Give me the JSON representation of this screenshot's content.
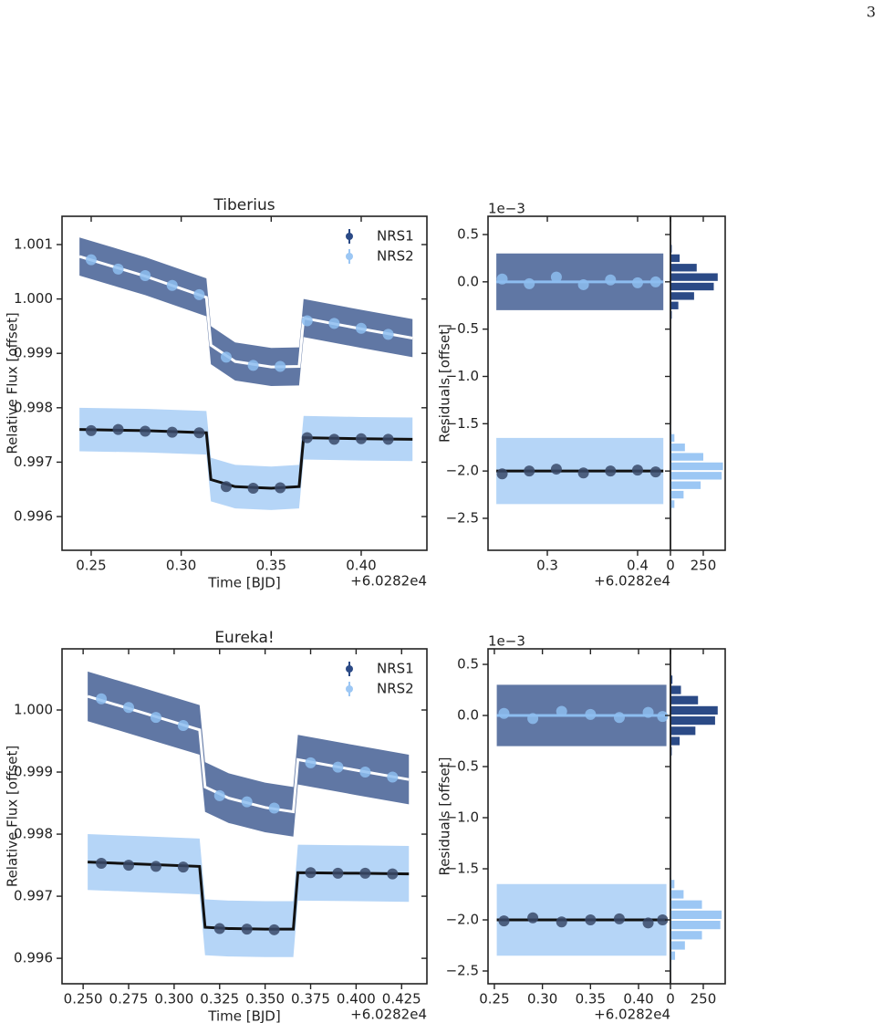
{
  "page_number": "3",
  "chart_data": [
    {
      "type": "line",
      "title": "Tiberius",
      "xlabel": "Time [BJD]",
      "ylabel": "Relative Flux [offset]",
      "x_offset_label": "+6.0282e4",
      "xlim": [
        0.2338,
        0.4365
      ],
      "ylim": [
        0.99538,
        1.00152
      ],
      "xticks": [
        0.25,
        {
          "value": 0.3,
          "label": "0.30"
        },
        0.35,
        {
          "value": 0.4,
          "label": "0.40"
        }
      ],
      "yticks": [
        0.996,
        0.997,
        0.998,
        0.999,
        {
          "value": 1,
          "label": "1.000"
        },
        1.001
      ],
      "legend": "upper right",
      "series": [
        {
          "name": "NRS1",
          "color": "#2b4a86",
          "model_color": "#ffffff",
          "bin_color": "#8dbdf0",
          "x": [
            0.2435,
            0.28,
            0.314,
            0.3165,
            0.33,
            0.35,
            0.3655,
            0.368,
            0.4,
            0.4285
          ],
          "values": [
            1.00078,
            1.00042,
            1.00003,
            0.99915,
            0.99885,
            0.99875,
            0.99876,
            0.99965,
            0.99945,
            0.99928
          ],
          "high": [
            1.00113,
            1.00077,
            1.00038,
            0.9995,
            0.9992,
            0.9991,
            0.99911,
            1.0,
            0.9998,
            0.99963
          ],
          "low": [
            1.00043,
            1.00007,
            0.99968,
            0.9988,
            0.9985,
            0.9984,
            0.99841,
            0.9993,
            0.9991,
            0.99893
          ],
          "bin_x": [
            0.25,
            0.265,
            0.28,
            0.295,
            0.31,
            0.325,
            0.34,
            0.355,
            0.37,
            0.385,
            0.4,
            0.415
          ],
          "bin_values": [
            1.00072,
            1.00055,
            1.00043,
            1.00025,
            1.00008,
            0.99893,
            0.99878,
            0.99876,
            0.9996,
            0.99955,
            0.99946,
            0.99935
          ]
        },
        {
          "name": "NRS2",
          "color": "#9cc7f4",
          "model_color": "#111111",
          "bin_color": "#3a4a6a",
          "x": [
            0.2435,
            0.28,
            0.314,
            0.3165,
            0.33,
            0.35,
            0.3655,
            0.368,
            0.4,
            0.4285
          ],
          "values": [
            0.9976,
            0.99758,
            0.99754,
            0.99668,
            0.99655,
            0.99652,
            0.99655,
            0.99745,
            0.99743,
            0.99742
          ],
          "high": [
            0.998,
            0.99798,
            0.99794,
            0.99708,
            0.99695,
            0.99692,
            0.99695,
            0.99785,
            0.99783,
            0.99782
          ],
          "low": [
            0.9972,
            0.99718,
            0.99714,
            0.99628,
            0.99615,
            0.99612,
            0.99615,
            0.99705,
            0.99703,
            0.99702
          ],
          "bin_x": [
            0.25,
            0.265,
            0.28,
            0.295,
            0.31,
            0.325,
            0.34,
            0.355,
            0.37,
            0.385,
            0.4,
            0.415
          ],
          "bin_values": [
            0.99758,
            0.9976,
            0.99757,
            0.99755,
            0.99754,
            0.99655,
            0.99652,
            0.99653,
            0.99745,
            0.99742,
            0.99743,
            0.99742
          ]
        }
      ]
    },
    {
      "type": "scatter",
      "ylabel": "Residuals [offset]",
      "scale_label": "1e−3",
      "x_offset_label": "+6.0282e4",
      "xlim": [
        0.2343,
        0.4364
      ],
      "ylim": [
        -2.838,
        0.693
      ],
      "xticks": [
        0.3,
        0.4
      ],
      "yticks": [
        {
          "value": -2.5,
          "label": "−2.5"
        },
        {
          "value": -2,
          "label": "−2.0"
        },
        {
          "value": -1.5,
          "label": "−1.5"
        },
        {
          "value": -1,
          "label": "−1.0"
        },
        {
          "value": -0.5,
          "label": "−0.5"
        },
        {
          "value": 0,
          "label": "0.0"
        },
        0.5
      ],
      "series": [
        {
          "color": "#2b4a86",
          "model_color": "#8dbdf0",
          "bin_color": "#8dbdf0",
          "x": [
            0.2435,
            0.4285
          ],
          "values": [
            0,
            0
          ],
          "high": [
            0.3,
            0.3
          ],
          "low": [
            -0.3,
            -0.3
          ],
          "bin_x": [
            0.25,
            0.28,
            0.31,
            0.34,
            0.37,
            0.4,
            0.42
          ],
          "bin_values": [
            0.03,
            -0.02,
            0.05,
            -0.03,
            0.02,
            -0.01,
            0
          ]
        },
        {
          "color": "#9cc7f4",
          "model_color": "#111111",
          "bin_color": "#3a4a6a",
          "x": [
            0.2435,
            0.4285
          ],
          "values": [
            -2,
            -2
          ],
          "high": [
            -1.65,
            -1.65
          ],
          "low": [
            -2.35,
            -2.35
          ],
          "bin_x": [
            0.25,
            0.28,
            0.31,
            0.34,
            0.37,
            0.4,
            0.42
          ],
          "bin_values": [
            -2.03,
            -2,
            -1.98,
            -2.02,
            -2,
            -1.99,
            -2.01
          ]
        }
      ]
    },
    {
      "type": "histogram",
      "xlim": [
        0,
        417
      ],
      "ylim": [
        -2.838,
        0.693
      ],
      "xticks": [
        0,
        250
      ],
      "series": [
        {
          "color": "#2b4a86",
          "bins": [
            -0.4,
            -0.3,
            -0.2,
            -0.1,
            0,
            0.1,
            0.2,
            0.3,
            0.4
          ],
          "counts": [
            10,
            60,
            180,
            330,
            360,
            200,
            70,
            10
          ]
        },
        {
          "color": "#9cc7f4",
          "bins": [
            -2.5,
            -2.4,
            -2.3,
            -2.2,
            -2.1,
            -2,
            -1.9,
            -1.8,
            -1.7,
            -1.6,
            -1.5
          ],
          "counts": [
            5,
            30,
            100,
            230,
            390,
            400,
            250,
            110,
            30,
            5
          ]
        }
      ]
    },
    {
      "type": "line",
      "title": "Eureka!",
      "xlabel": "Time [BJD]",
      "ylabel": "Relative Flux [offset]",
      "x_offset_label": "+6.0282e4",
      "xlim": [
        0.2384,
        0.4389
      ],
      "ylim": [
        0.99559,
        1.000985
      ],
      "xticks": [
        {
          "value": 0.25,
          "label": "0.250"
        },
        0.275,
        {
          "value": 0.3,
          "label": "0.300"
        },
        0.325,
        {
          "value": 0.35,
          "label": "0.350"
        },
        0.375,
        {
          "value": 0.4,
          "label": "0.400"
        },
        0.425
      ],
      "yticks": [
        0.996,
        0.997,
        0.998,
        0.999,
        {
          "value": 1,
          "label": "1.000"
        }
      ],
      "legend": "upper right",
      "series": [
        {
          "name": "NRS1",
          "color": "#2b4a86",
          "model_color": "#ffffff",
          "bin_color": "#8dbdf0",
          "x": [
            0.2525,
            0.28,
            0.314,
            0.317,
            0.33,
            0.35,
            0.3655,
            0.368,
            0.4,
            0.429
          ],
          "values": [
            1.00022,
            0.99998,
            0.99968,
            0.99876,
            0.99858,
            0.99843,
            0.99836,
            0.9992,
            0.99903,
            0.99888
          ],
          "high": [
            1.00062,
            1.00038,
            1.00008,
            0.99916,
            0.99898,
            0.99883,
            0.99876,
            0.9996,
            0.99943,
            0.99928
          ],
          "low": [
            0.99982,
            0.99958,
            0.99928,
            0.99836,
            0.99818,
            0.99803,
            0.99796,
            0.9988,
            0.99863,
            0.99848
          ],
          "bin_x": [
            0.26,
            0.275,
            0.29,
            0.305,
            0.325,
            0.34,
            0.355,
            0.375,
            0.39,
            0.405,
            0.42
          ],
          "bin_values": [
            1.00018,
            1.00004,
            0.99988,
            0.99975,
            0.99862,
            0.99852,
            0.99842,
            0.99915,
            0.99908,
            0.999,
            0.99892
          ]
        },
        {
          "name": "NRS2",
          "color": "#9cc7f4",
          "model_color": "#111111",
          "bin_color": "#3a4a6a",
          "x": [
            0.2525,
            0.28,
            0.314,
            0.317,
            0.33,
            0.35,
            0.3655,
            0.368,
            0.4,
            0.429
          ],
          "values": [
            0.99755,
            0.99752,
            0.99748,
            0.9965,
            0.99648,
            0.99647,
            0.99647,
            0.99738,
            0.99737,
            0.99736
          ],
          "high": [
            0.998,
            0.99797,
            0.99793,
            0.99695,
            0.99693,
            0.99692,
            0.99692,
            0.99783,
            0.99782,
            0.99781
          ],
          "low": [
            0.9971,
            0.99707,
            0.99703,
            0.99605,
            0.99603,
            0.99602,
            0.99602,
            0.99693,
            0.99692,
            0.99691
          ],
          "bin_x": [
            0.26,
            0.275,
            0.29,
            0.305,
            0.325,
            0.34,
            0.355,
            0.375,
            0.39,
            0.405,
            0.42
          ],
          "bin_values": [
            0.99753,
            0.9975,
            0.99748,
            0.99747,
            0.99648,
            0.99647,
            0.99646,
            0.99738,
            0.99737,
            0.99737,
            0.99736
          ]
        }
      ]
    },
    {
      "type": "scatter",
      "ylabel": "Residuals [offset]",
      "scale_label": "1e−3",
      "x_offset_label": "+6.0282e4",
      "xlim": [
        0.2434,
        0.4332
      ],
      "ylim": [
        -2.625,
        0.652
      ],
      "xticks": [
        0.25,
        {
          "value": 0.3,
          "label": "0.30"
        },
        0.35,
        {
          "value": 0.4,
          "label": "0.40"
        }
      ],
      "yticks": [
        {
          "value": -2.5,
          "label": "−2.5"
        },
        {
          "value": -2,
          "label": "−2.0"
        },
        {
          "value": -1.5,
          "label": "−1.5"
        },
        {
          "value": -1,
          "label": "−1.0"
        },
        {
          "value": -0.5,
          "label": "−0.5"
        },
        {
          "value": 0,
          "label": "0.0"
        },
        0.5
      ],
      "series": [
        {
          "color": "#2b4a86",
          "model_color": "#8dbdf0",
          "bin_color": "#8dbdf0",
          "x": [
            0.2525,
            0.429
          ],
          "values": [
            0,
            0
          ],
          "high": [
            0.3,
            0.3
          ],
          "low": [
            -0.3,
            -0.3
          ],
          "bin_x": [
            0.26,
            0.29,
            0.32,
            0.35,
            0.38,
            0.41,
            0.425
          ],
          "bin_values": [
            0.02,
            -0.03,
            0.04,
            0.01,
            -0.02,
            0.03,
            -0.01
          ]
        },
        {
          "color": "#9cc7f4",
          "model_color": "#111111",
          "bin_color": "#3a4a6a",
          "x": [
            0.2525,
            0.429
          ],
          "values": [
            -2,
            -2
          ],
          "high": [
            -1.65,
            -1.65
          ],
          "low": [
            -2.35,
            -2.35
          ],
          "bin_x": [
            0.26,
            0.29,
            0.32,
            0.35,
            0.38,
            0.41,
            0.425
          ],
          "bin_values": [
            -2.01,
            -1.98,
            -2.02,
            -2,
            -1.99,
            -2.03,
            -2
          ]
        }
      ]
    },
    {
      "type": "histogram",
      "xlim": [
        0,
        417
      ],
      "ylim": [
        -2.625,
        0.652
      ],
      "xticks": [
        0,
        250
      ],
      "series": [
        {
          "color": "#2b4a86",
          "bins": [
            -0.4,
            -0.3,
            -0.2,
            -0.1,
            0,
            0.1,
            0.2,
            0.3,
            0.4
          ],
          "counts": [
            10,
            70,
            190,
            340,
            360,
            210,
            80,
            15
          ]
        },
        {
          "color": "#9cc7f4",
          "bins": [
            -2.5,
            -2.4,
            -2.3,
            -2.2,
            -2.1,
            -2,
            -1.9,
            -1.8,
            -1.7,
            -1.6,
            -1.5
          ],
          "counts": [
            5,
            35,
            110,
            240,
            380,
            390,
            240,
            100,
            30,
            5
          ]
        }
      ]
    }
  ]
}
